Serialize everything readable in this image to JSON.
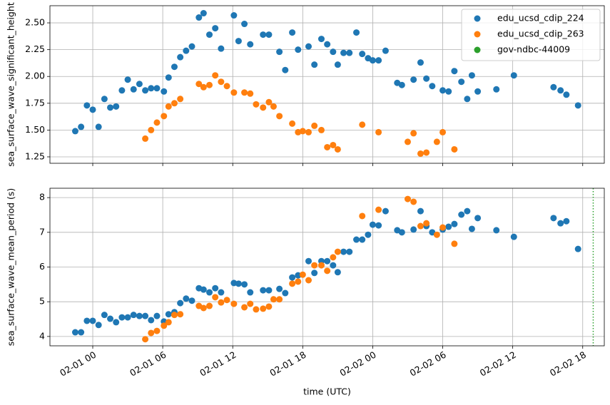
{
  "chart_data": [
    {
      "type": "scatter",
      "ylabel": "sea_surface_wave_significant_height",
      "xlim": [
        -3.67,
        43.85
      ],
      "ylim": [
        1.19,
        2.66
      ],
      "xticks": [
        0,
        6,
        12,
        18,
        24,
        30,
        36,
        42
      ],
      "yticks": [
        1.25,
        {
          "value": 1.5,
          "label": "1.50"
        },
        1.75,
        {
          "value": 2,
          "label": "2.00"
        },
        2.25,
        {
          "value": 2.5,
          "label": "2.50"
        }
      ],
      "grid": true,
      "legend": "upper right",
      "series": [
        {
          "name": "edu_ucsd_cdip_224",
          "color": "#1f77b4",
          "x": [
            -1.5,
            -1,
            -0.5,
            0,
            0.5,
            1,
            1.5,
            2,
            2.5,
            3,
            3.5,
            4,
            4.5,
            5,
            5.5,
            6.1,
            6.5,
            7,
            7.5,
            8,
            8.5,
            9.1,
            9.5,
            10,
            10.5,
            11,
            12.1,
            12.5,
            13,
            13.5,
            14.6,
            15.1,
            16,
            16.5,
            17.1,
            17.6,
            18.5,
            19,
            19.6,
            20.1,
            20.6,
            21,
            21.5,
            22,
            22.6,
            23.1,
            23.6,
            24,
            24.5,
            25.1,
            26.1,
            26.5,
            27.5,
            28.1,
            28.6,
            29.1,
            30,
            30.5,
            31,
            31.6,
            32.1,
            32.5,
            33,
            34.6,
            36.1,
            39.5,
            40.1,
            40.6,
            41.6
          ],
          "values": [
            1.49,
            1.53,
            1.73,
            1.69,
            1.53,
            1.79,
            1.71,
            1.72,
            1.87,
            1.97,
            1.88,
            1.93,
            1.87,
            1.89,
            1.89,
            1.86,
            1.99,
            2.09,
            2.18,
            2.24,
            2.28,
            2.55,
            2.59,
            2.39,
            2.45,
            2.26,
            2.57,
            2.33,
            2.49,
            2.3,
            2.39,
            2.39,
            2.23,
            2.06,
            2.41,
            2.25,
            2.28,
            2.11,
            2.35,
            2.3,
            2.23,
            2.11,
            2.22,
            2.22,
            2.41,
            2.21,
            2.17,
            2.15,
            2.15,
            2.24,
            1.94,
            1.92,
            1.97,
            2.13,
            1.98,
            1.91,
            1.87,
            1.86,
            2.05,
            1.95,
            1.79,
            2.01,
            1.86,
            1.88,
            2.01,
            1.9,
            1.87,
            1.83,
            1.73
          ]
        },
        {
          "name": "edu_ucsd_cdip_263",
          "color": "#ff7f0e",
          "x": [
            4.5,
            5,
            5.5,
            6.1,
            6.5,
            7,
            7.5,
            9.1,
            9.5,
            10,
            10.5,
            11,
            11.5,
            12.1,
            13,
            13.5,
            14,
            14.6,
            15.1,
            15.5,
            16,
            17.1,
            17.6,
            18,
            18.5,
            19,
            19.6,
            20.1,
            20.6,
            21,
            23.1,
            24.5,
            27,
            27.5,
            28.1,
            28.6,
            29.5,
            30,
            31
          ],
          "values": [
            1.42,
            1.5,
            1.57,
            1.63,
            1.72,
            1.75,
            1.79,
            1.93,
            1.9,
            1.92,
            2.01,
            1.95,
            1.91,
            1.85,
            1.85,
            1.84,
            1.74,
            1.71,
            1.76,
            1.72,
            1.63,
            1.56,
            1.48,
            1.49,
            1.48,
            1.54,
            1.5,
            1.34,
            1.36,
            1.32,
            1.55,
            1.48,
            1.39,
            1.47,
            1.28,
            1.29,
            1.39,
            1.48,
            1.32
          ]
        },
        {
          "name": "gov-ndbc-44009",
          "color": "#2ca02c",
          "x": [],
          "values": []
        }
      ]
    },
    {
      "type": "scatter",
      "ylabel": "sea_surface_wave_mean_period (s)",
      "xlabel": "time (UTC)",
      "xlim": [
        -3.67,
        43.85
      ],
      "ylim": [
        3.73,
        8.27
      ],
      "xticks": [
        {
          "value": 0,
          "label": "02-01 00"
        },
        {
          "value": 6,
          "label": "02-01 06"
        },
        {
          "value": 12,
          "label": "02-01 12"
        },
        {
          "value": 18,
          "label": "02-01 18"
        },
        {
          "value": 24,
          "label": "02-02 00"
        },
        {
          "value": 30,
          "label": "02-02 06"
        },
        {
          "value": 36,
          "label": "02-02 12"
        },
        {
          "value": 42,
          "label": "02-02 18"
        }
      ],
      "yticks": [
        4,
        5,
        6,
        7,
        8
      ],
      "grid": true,
      "vlines": [
        {
          "x": 42.9,
          "color": "#2ca02c"
        }
      ],
      "series": [
        {
          "color": "#1f77b4",
          "x": [
            -1.5,
            -1,
            -0.5,
            0,
            0.5,
            1,
            1.5,
            2,
            2.5,
            3,
            3.5,
            4,
            4.5,
            5,
            5.5,
            6.1,
            6.5,
            7,
            7.5,
            8,
            8.5,
            9.1,
            9.5,
            10,
            10.5,
            11,
            12.1,
            12.5,
            13,
            13.5,
            14.6,
            15.1,
            16,
            16.5,
            17.1,
            17.6,
            18.5,
            19,
            19.6,
            20.1,
            20.6,
            21,
            21.5,
            22,
            22.6,
            23.1,
            23.6,
            24,
            24.5,
            25.1,
            26.1,
            26.5,
            27.5,
            28.1,
            28.6,
            29.1,
            30,
            30.5,
            31,
            31.6,
            32.1,
            32.5,
            33,
            34.6,
            36.1,
            39.5,
            40.1,
            40.6,
            41.6
          ],
          "values": [
            4.12,
            4.12,
            4.45,
            4.45,
            4.33,
            4.62,
            4.51,
            4.41,
            4.55,
            4.55,
            4.62,
            4.59,
            4.59,
            4.47,
            4.59,
            4.43,
            4.64,
            4.7,
            4.96,
            5.09,
            5.03,
            5.39,
            5.35,
            5.27,
            5.39,
            5.27,
            5.54,
            5.52,
            5.5,
            5.27,
            5.33,
            5.33,
            5.37,
            5.25,
            5.7,
            5.76,
            6.17,
            5.83,
            6.17,
            6.17,
            6.05,
            5.85,
            6.44,
            6.44,
            6.79,
            6.79,
            6.93,
            7.22,
            7.2,
            7.61,
            7.06,
            7,
            7.08,
            7.61,
            7.18,
            7,
            7.08,
            7.16,
            7.24,
            7.51,
            7.61,
            7.1,
            7.41,
            7.06,
            6.87,
            7.41,
            7.26,
            7.32,
            6.52
          ]
        },
        {
          "color": "#ff7f0e",
          "x": [
            4.5,
            5,
            5.5,
            6.1,
            6.5,
            7,
            7.5,
            9.1,
            9.5,
            10,
            10.5,
            11,
            11.5,
            12.1,
            13,
            13.5,
            14,
            14.6,
            15.1,
            15.5,
            16,
            17.1,
            17.6,
            18,
            18.5,
            19,
            19.6,
            20.1,
            20.6,
            21,
            23.1,
            24.5,
            27,
            27.5,
            28.1,
            28.6,
            29.5,
            30,
            31
          ],
          "values": [
            3.92,
            4.1,
            4.16,
            4.31,
            4.41,
            4.62,
            4.64,
            4.88,
            4.82,
            4.88,
            5.13,
            4.98,
            5.05,
            4.94,
            4.84,
            4.94,
            4.78,
            4.8,
            4.86,
            5.07,
            5.07,
            5.52,
            5.58,
            5.78,
            5.62,
            6.05,
            6.05,
            5.89,
            6.28,
            6.44,
            7.47,
            7.65,
            7.96,
            7.88,
            7.18,
            7.26,
            6.93,
            7.14,
            6.67
          ]
        }
      ]
    }
  ]
}
